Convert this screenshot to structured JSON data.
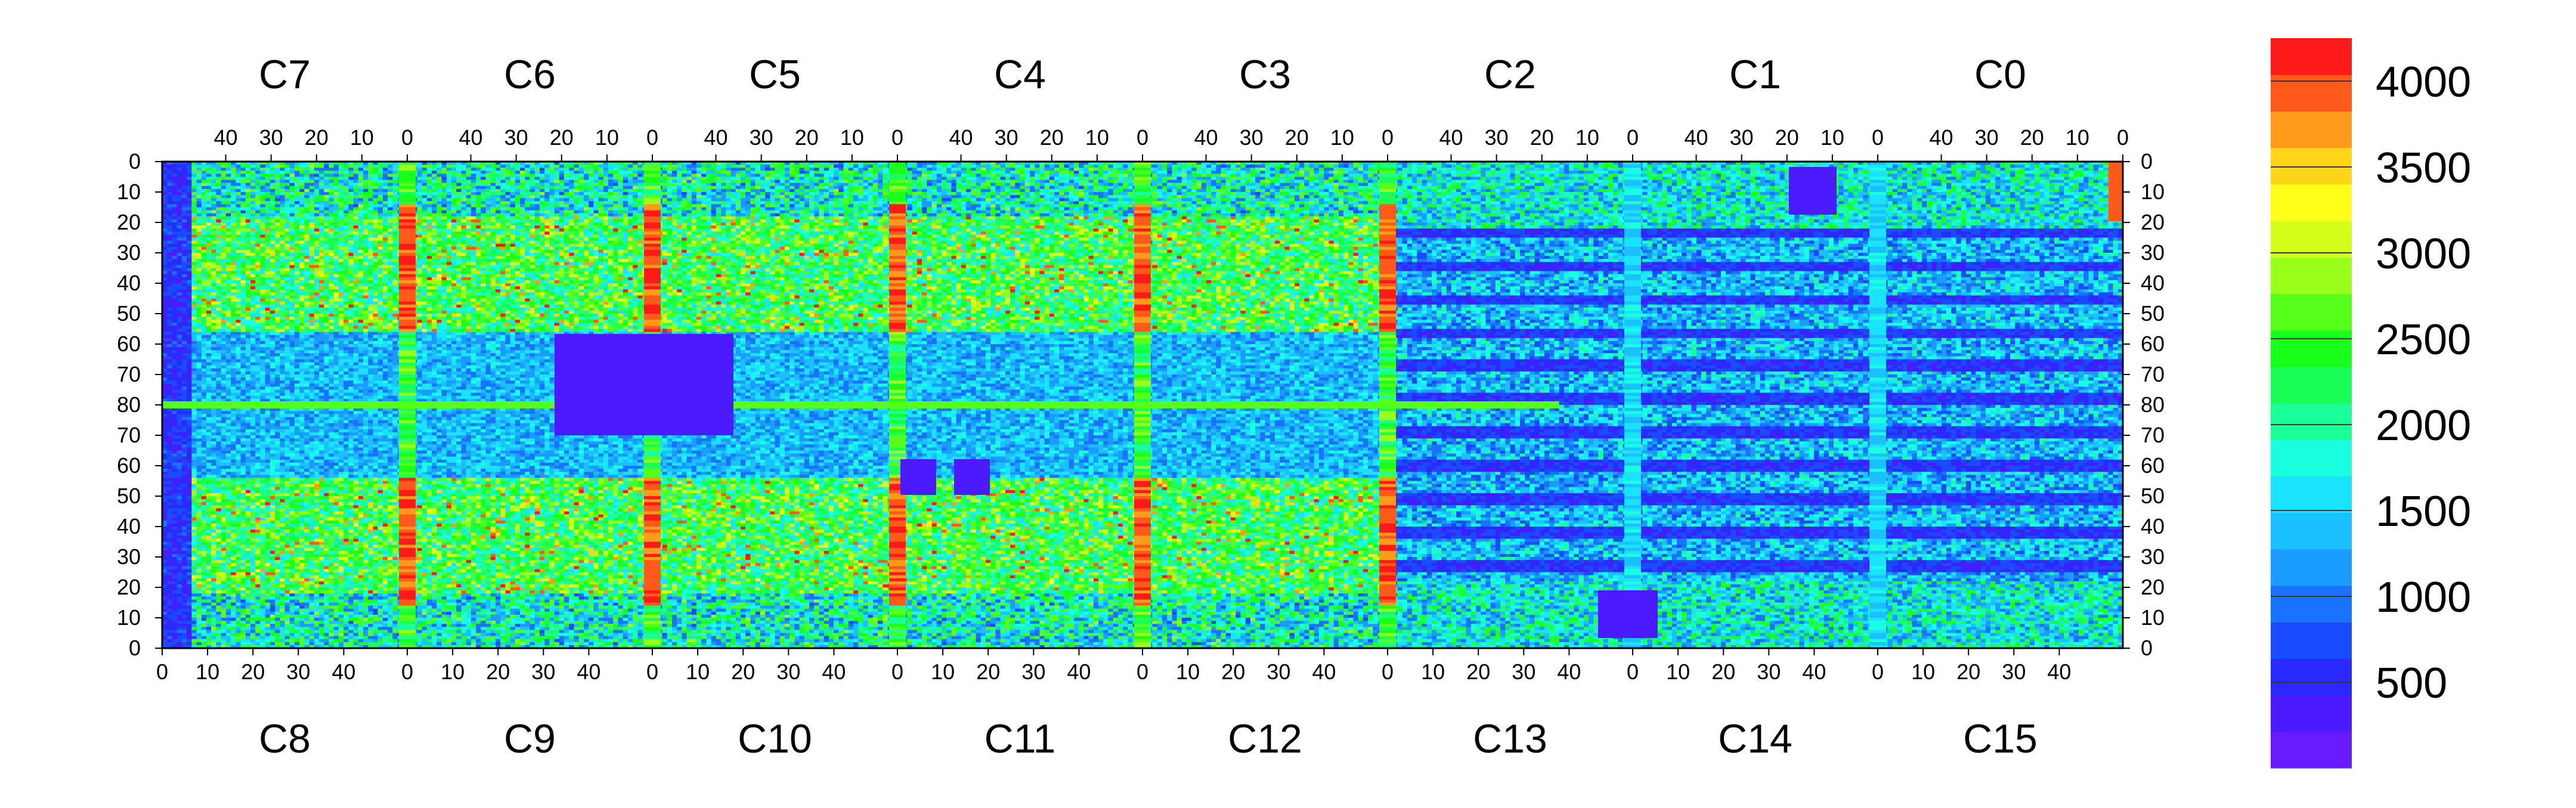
{
  "chart_data": {
    "type": "heatmap",
    "title": "",
    "xlabel": "",
    "ylabel": "",
    "chip_labels_top": [
      "C7",
      "C6",
      "C5",
      "C4",
      "C3",
      "C2",
      "C1",
      "C0"
    ],
    "chip_labels_bottom": [
      "C8",
      "C9",
      "C10",
      "C11",
      "C12",
      "C13",
      "C14",
      "C15"
    ],
    "top_x_ticks": [
      "40",
      "30",
      "20",
      "10",
      "0"
    ],
    "bottom_x_ticks": [
      "0",
      "10",
      "20",
      "30",
      "40"
    ],
    "y_ticks": [
      "0",
      "10",
      "20",
      "30",
      "40",
      "50",
      "60",
      "70",
      "80",
      "70",
      "60",
      "50",
      "40",
      "30",
      "20",
      "10",
      "0"
    ],
    "colorbar": {
      "min": 0,
      "max": 4250,
      "tick_values": [
        500,
        1000,
        1500,
        2000,
        2500,
        3000,
        3500,
        4000
      ],
      "tick_labels": [
        "500",
        "1000",
        "1500",
        "2000",
        "2500",
        "3000",
        "3500",
        "4000"
      ],
      "colors": [
        "#6a1aff",
        "#4b1aff",
        "#2a2aff",
        "#1a4cff",
        "#1a73ff",
        "#1a9cff",
        "#1ac0ff",
        "#1ae3ff",
        "#1affe0",
        "#1aff9a",
        "#1aff55",
        "#1aff1a",
        "#55ff1a",
        "#9aff1a",
        "#d5ff1a",
        "#ffff1a",
        "#ffd51a",
        "#ff9a1a",
        "#ff5a1a",
        "#ff1a1a"
      ]
    },
    "grid": false,
    "legend": "colorbar-right"
  }
}
